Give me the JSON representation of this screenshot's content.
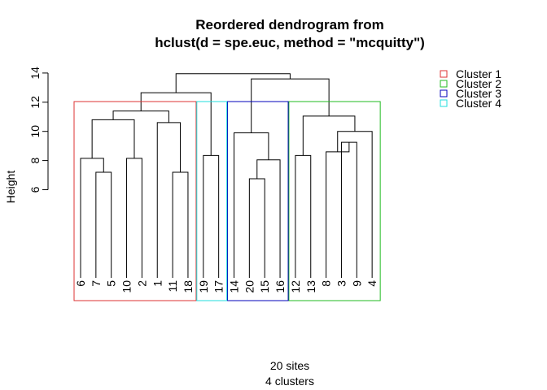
{
  "chart_data": {
    "type": "dendrogram",
    "title_line1": "Reordered dendrogram from",
    "title_line2": "hclust(d = spe.euc, method = \"mcquitty\")",
    "ylabel": "Height",
    "xlabel_line1": "20 sites",
    "xlabel_line2": "4 clusters",
    "yticks": [
      "6",
      "8",
      "10",
      "12",
      "14"
    ],
    "ylim": [
      -0.5,
      14.5
    ],
    "leaves": [
      "6",
      "7",
      "5",
      "10",
      "2",
      "1",
      "11",
      "18",
      "19",
      "17",
      "14",
      "20",
      "15",
      "16",
      "12",
      "13",
      "8",
      "3",
      "9",
      "4"
    ],
    "merges": [
      {
        "left": "L1",
        "right": "L2",
        "height": 7.2,
        "name": "m1"
      },
      {
        "left": "L0",
        "right": "m1",
        "height": 8.15,
        "name": "m2"
      },
      {
        "left": "L3",
        "right": "L4",
        "height": 8.15,
        "name": "m3"
      },
      {
        "left": "m2",
        "right": "m3",
        "height": 10.8,
        "name": "m4"
      },
      {
        "left": "L6",
        "right": "L7",
        "height": 7.2,
        "name": "m5"
      },
      {
        "left": "L5",
        "right": "m5",
        "height": 10.6,
        "name": "m6"
      },
      {
        "left": "m4",
        "right": "m6",
        "height": 11.4,
        "name": "m7"
      },
      {
        "left": "L8",
        "right": "L9",
        "height": 8.35,
        "name": "m8"
      },
      {
        "left": "m7",
        "right": "m8",
        "height": 12.65,
        "name": "m9"
      },
      {
        "left": "L11",
        "right": "L12",
        "height": 6.75,
        "name": "m10"
      },
      {
        "left": "m10",
        "right": "L13",
        "height": 8.05,
        "name": "m11"
      },
      {
        "left": "L10",
        "right": "m11",
        "height": 9.9,
        "name": "m12"
      },
      {
        "left": "L14",
        "right": "L15",
        "height": 8.35,
        "name": "m13"
      },
      {
        "left": "L17",
        "right": "L18",
        "height": 9.25,
        "name": "m14"
      },
      {
        "left": "L16",
        "right": "m14",
        "height": 8.6,
        "name": "m15"
      },
      {
        "left": "m15",
        "right": "L19",
        "height": 10.0,
        "name": "m16"
      },
      {
        "left": "m13",
        "right": "m16",
        "height": 11.05,
        "name": "m17"
      },
      {
        "left": "m12",
        "right": "m17",
        "height": 13.6,
        "name": "m18"
      },
      {
        "left": "m9",
        "right": "m18",
        "height": 13.95,
        "name": "m19"
      }
    ],
    "clusters": [
      {
        "name": "Cluster 1",
        "color": "#DF536B",
        "first": 0,
        "last": 7
      },
      {
        "name": "Cluster 2",
        "color": "#61D04F",
        "first": 14,
        "last": 19
      },
      {
        "name": "Cluster 3",
        "color": "#2297E6",
        "first": 10,
        "last": 13
      },
      {
        "name": "Cluster 4",
        "color": "#28E2E5",
        "first": 8,
        "last": 9
      }
    ],
    "cluster_colors_exact": {
      "Cluster 1": "#dd3333",
      "Cluster 2": "#22bb22",
      "Cluster 3": "#0000bb",
      "Cluster 4": "#22dddd"
    },
    "legend_position": "top-right",
    "grid": false
  }
}
